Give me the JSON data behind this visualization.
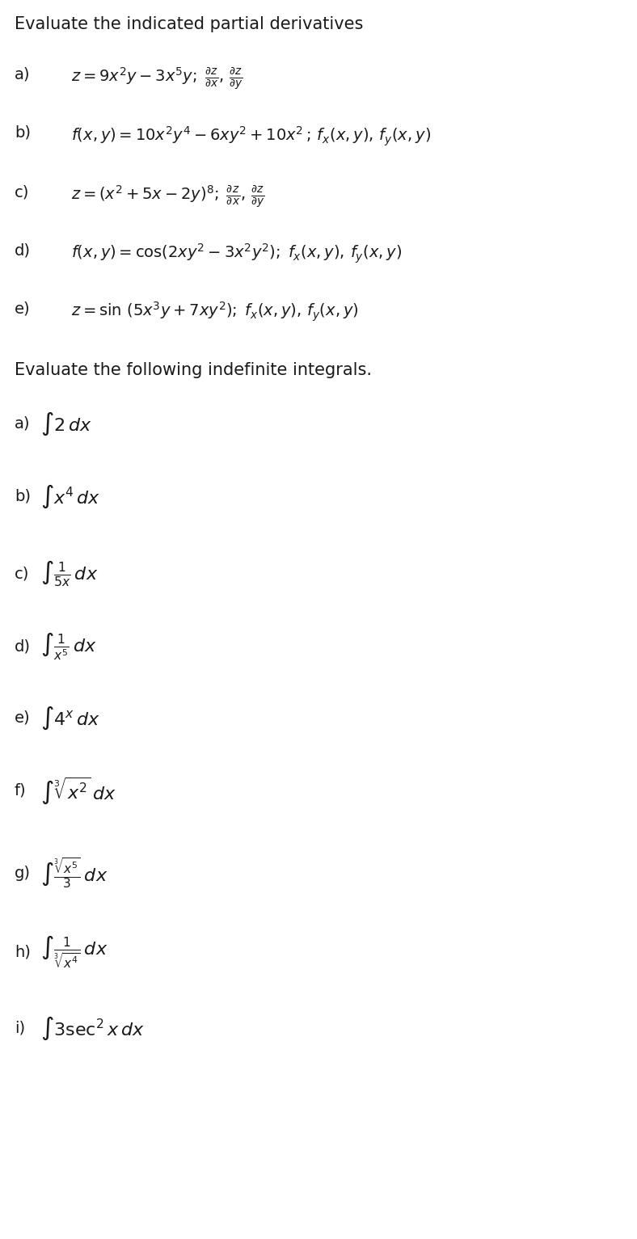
{
  "bg_color": "#ffffff",
  "text_color": "#1a1a1a",
  "fig_width": 7.88,
  "fig_height": 15.33,
  "section1_title": "Evaluate the indicated partial derivatives",
  "section2_title": "Evaluate the following indefinite integrals.",
  "partial_items": [
    {
      "label": "a)",
      "formula": "$z = 9x^2y - 3x^5y;\\; \\frac{\\partial z}{\\partial x},\\, \\frac{\\partial z}{\\partial y}$"
    },
    {
      "label": "b)",
      "formula": "$f(x, y) = 10x^2y^4 - 6xy^2 + 10x^2\\,;\\, f_x(x, y),\\, f_y(x, y)$"
    },
    {
      "label": "c)",
      "formula": "$z = (x^2 + 5x - 2y)^8;\\; \\frac{\\partial z}{\\partial x},\\, \\frac{\\partial z}{\\partial y}$"
    },
    {
      "label": "d)",
      "formula": "$f(x,y) = \\cos(2xy^2 - 3x^2y^2);\\; f_x(x,y),\\, f_y(x,y)$"
    },
    {
      "label": "e)",
      "formula": "$z = \\sin\\,(5x^3y + 7xy^2);\\; f_x(x,y),\\, f_y(x,y)$"
    }
  ],
  "integral_items": [
    {
      "label": "a)",
      "formula": "$\\int 2\\,dx$"
    },
    {
      "label": "b)",
      "formula": "$\\int x^4\\,dx$"
    },
    {
      "label": "c)",
      "formula": "$\\int \\frac{1}{5x}\\,dx$"
    },
    {
      "label": "d)",
      "formula": "$\\int \\frac{1}{x^5}\\,dx$"
    },
    {
      "label": "e)",
      "formula": "$\\int 4^x\\,dx$"
    },
    {
      "label": "f)",
      "formula": "$\\int \\sqrt[3]{x^2}\\,dx$"
    },
    {
      "label": "g)",
      "formula": "$\\int \\frac{\\sqrt[3]{x^5}}{3}\\,dx$"
    },
    {
      "label": "h)",
      "formula": "$\\int \\frac{1}{\\sqrt[3]{x^4}}\\,dx$"
    },
    {
      "label": "i)",
      "formula": "$\\int 3\\sec^2 x\\,dx$"
    }
  ]
}
